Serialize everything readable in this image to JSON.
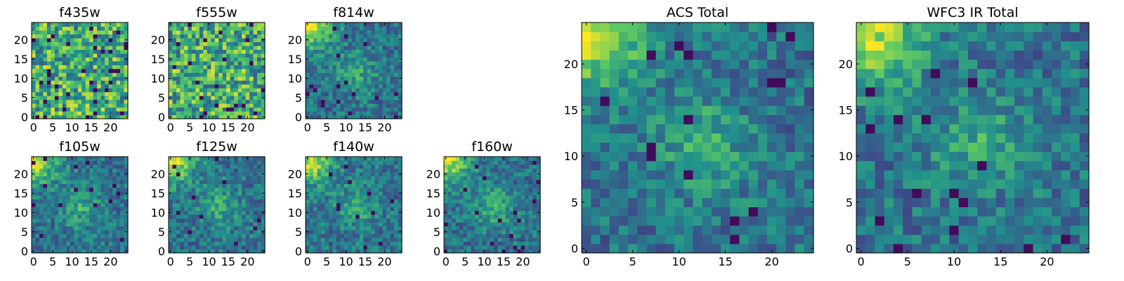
{
  "figure": {
    "colormap": "viridis",
    "colormap_stops": [
      "#440154",
      "#3b528b",
      "#21918c",
      "#5ec962",
      "#fde725"
    ]
  },
  "chart_data": [
    {
      "type": "heatmap",
      "title": "f435w",
      "xticks": [
        "0",
        "5",
        "10",
        "15",
        "20"
      ],
      "yticks": [
        "0",
        "5",
        "10",
        "15",
        "20"
      ],
      "grid_size": 25,
      "xlim": [
        -0.5,
        24.5
      ],
      "ylim": [
        -0.5,
        24.5
      ],
      "pattern": "noise"
    },
    {
      "type": "heatmap",
      "title": "f555w",
      "xticks": [
        "0",
        "5",
        "10",
        "15",
        "20"
      ],
      "yticks": [
        "0",
        "5",
        "10",
        "15",
        "20"
      ],
      "grid_size": 25,
      "xlim": [
        -0.5,
        24.5
      ],
      "ylim": [
        -0.5,
        24.5
      ],
      "pattern": "noise"
    },
    {
      "type": "heatmap",
      "title": "f814w",
      "xticks": [
        "0",
        "5",
        "10",
        "15",
        "20"
      ],
      "yticks": [
        "0",
        "5",
        "10",
        "15",
        "20"
      ],
      "grid_size": 25,
      "xlim": [
        -0.5,
        24.5
      ],
      "ylim": [
        -0.5,
        24.5
      ],
      "pattern": "source+corner"
    },
    {
      "type": "heatmap",
      "title": "f105w",
      "xticks": [
        "0",
        "5",
        "10",
        "15",
        "20"
      ],
      "yticks": [
        "0",
        "5",
        "10",
        "15",
        "20"
      ],
      "grid_size": 25,
      "xlim": [
        -0.5,
        24.5
      ],
      "ylim": [
        -0.5,
        24.5
      ],
      "pattern": "source+corner"
    },
    {
      "type": "heatmap",
      "title": "f125w",
      "xticks": [
        "0",
        "5",
        "10",
        "15",
        "20"
      ],
      "yticks": [
        "0",
        "5",
        "10",
        "15",
        "20"
      ],
      "grid_size": 25,
      "xlim": [
        -0.5,
        24.5
      ],
      "ylim": [
        -0.5,
        24.5
      ],
      "pattern": "source+corner"
    },
    {
      "type": "heatmap",
      "title": "f140w",
      "xticks": [
        "0",
        "5",
        "10",
        "15",
        "20"
      ],
      "yticks": [
        "0",
        "5",
        "10",
        "15",
        "20"
      ],
      "grid_size": 25,
      "xlim": [
        -0.5,
        24.5
      ],
      "ylim": [
        -0.5,
        24.5
      ],
      "pattern": "source+corner"
    },
    {
      "type": "heatmap",
      "title": "f160w",
      "xticks": [
        "0",
        "5",
        "10",
        "15",
        "20"
      ],
      "yticks": [
        "0",
        "5",
        "10",
        "15",
        "20"
      ],
      "grid_size": 25,
      "xlim": [
        -0.5,
        24.5
      ],
      "ylim": [
        -0.5,
        24.5
      ],
      "pattern": "source+corner"
    },
    {
      "type": "heatmap",
      "title": "ACS Total",
      "xticks": [
        "0",
        "5",
        "10",
        "15",
        "20"
      ],
      "yticks": [
        "0",
        "5",
        "10",
        "15",
        "20"
      ],
      "grid_size": 25,
      "xlim": [
        -0.5,
        24.5
      ],
      "ylim": [
        -0.5,
        24.5
      ],
      "pattern": "source+corner"
    },
    {
      "type": "heatmap",
      "title": "WFC3 IR Total",
      "xticks": [
        "0",
        "5",
        "10",
        "15",
        "20"
      ],
      "yticks": [
        "0",
        "5",
        "10",
        "15",
        "20"
      ],
      "grid_size": 25,
      "xlim": [
        -0.5,
        24.5
      ],
      "ylim": [
        -0.5,
        24.5
      ],
      "pattern": "source+corner"
    }
  ]
}
